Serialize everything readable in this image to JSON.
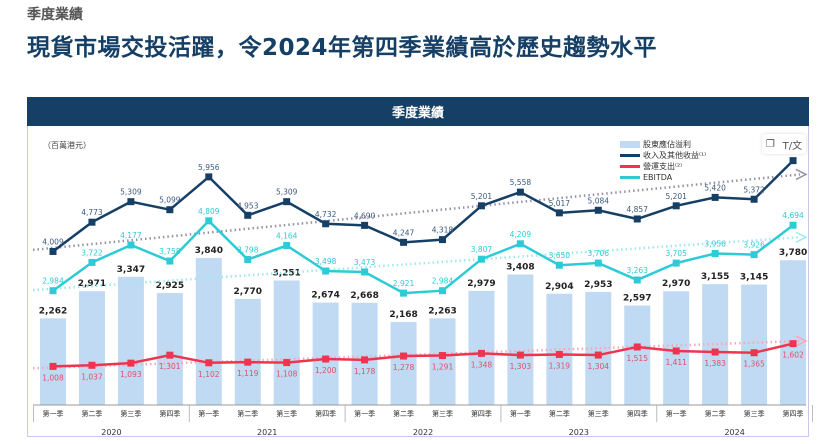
{
  "page": {
    "kicker": "季度業績",
    "headline": "現貨市場交投活躍，令2024年第四季業績高於歷史趨勢水平",
    "panel_title": "季度業績"
  },
  "toolbar": {
    "copy_icon": "copy-icon",
    "translate_icon": "translate-icon",
    "translate_label": "T/文"
  },
  "chart_data": {
    "type": "bar+line",
    "title": "季度業績",
    "unit_label": "（百萬港元）",
    "categories": [
      "第一季",
      "第二季",
      "第三季",
      "第四季",
      "第一季",
      "第二季",
      "第三季",
      "第四季",
      "第一季",
      "第二季",
      "第三季",
      "第四季",
      "第一季",
      "第二季",
      "第三季",
      "第四季",
      "第一季",
      "第二季",
      "第三季",
      "第四季"
    ],
    "years": [
      "2020",
      "2021",
      "2022",
      "2023",
      "2024"
    ],
    "ylim": [
      0,
      6800
    ],
    "legend": [
      "股東應佔溢利",
      "收入及其他收益⁽¹⁾",
      "營運支出⁽²⁾",
      "EBITDA"
    ],
    "legend_position": "top-right",
    "colors": {
      "bar": "#bfdaf2",
      "revenue": "#163f66",
      "opex": "#f0344f",
      "ebitda": "#2ccbd6",
      "trend": "#9a8fa8"
    },
    "series": [
      {
        "name": "股東應佔溢利",
        "type": "bar",
        "values": [
          2262,
          2971,
          3347,
          2925,
          3840,
          2770,
          3251,
          2674,
          2668,
          2168,
          2263,
          2979,
          3408,
          2904,
          2953,
          2597,
          2970,
          3155,
          3145,
          3780
        ],
        "labels": [
          "2,262",
          "2,971",
          "3,347",
          "2,925",
          "3,840",
          "2,770",
          "3,251",
          "2,674",
          "2,668",
          "2,168",
          "2,263",
          "2,979",
          "3,408",
          "2,904",
          "2,953",
          "2,597",
          "2,970",
          "3,155",
          "3,145",
          "3,780"
        ]
      },
      {
        "name": "收入及其他收益⁽¹⁾",
        "type": "line",
        "values": [
          4009,
          4773,
          5309,
          5099,
          5956,
          4953,
          5309,
          4732,
          4690,
          4247,
          4318,
          5201,
          5558,
          5017,
          5084,
          4857,
          5201,
          5420,
          5372,
          6380
        ],
        "labels": [
          "4,009",
          "4,773",
          "5,309",
          "5,099",
          "5,956",
          "4,953",
          "5,309",
          "4,732",
          "4,690",
          "4,247",
          "4,318",
          "5,201",
          "5,558",
          "5,017",
          "5,084",
          "4,857",
          "5,201",
          "5,420",
          "5,372",
          ""
        ]
      },
      {
        "name": "營運支出⁽²⁾",
        "type": "line",
        "values": [
          1008,
          1037,
          1093,
          1301,
          1102,
          1119,
          1108,
          1200,
          1178,
          1278,
          1291,
          1348,
          1303,
          1319,
          1304,
          1515,
          1411,
          1383,
          1365,
          1602
        ],
        "labels": [
          "1,008",
          "1,037",
          "1,093",
          "1,301",
          "1,102",
          "1,119",
          "1,108",
          "1,200",
          "1,178",
          "1,278",
          "1,291",
          "1,348",
          "1,303",
          "1,319",
          "1,304",
          "1,515",
          "1,411",
          "1,383",
          "1,365",
          "1,602"
        ]
      },
      {
        "name": "EBITDA",
        "type": "line",
        "values": [
          2984,
          3722,
          4177,
          3758,
          4809,
          3798,
          4164,
          3498,
          3473,
          2921,
          2984,
          3807,
          4209,
          3650,
          3706,
          3263,
          3705,
          3956,
          3926,
          4694
        ],
        "labels": [
          "2,984",
          "3,722",
          "4,177",
          "3,758",
          "4,809",
          "3,798",
          "4,164",
          "3,498",
          "3,473",
          "2,921",
          "2,984",
          "3,807",
          "4,209",
          "3,650",
          "3,706",
          "3,263",
          "3,705",
          "3,956",
          "3,926",
          "4,694"
        ]
      }
    ],
    "trendlines": [
      {
        "series": "收入及其他收益⁽¹⁾",
        "start": 4050,
        "end": 6020
      },
      {
        "series": "EBITDA",
        "start": 3000,
        "end": 4380
      },
      {
        "series": "營運支出⁽²⁾",
        "start": 960,
        "end": 1670
      }
    ]
  }
}
